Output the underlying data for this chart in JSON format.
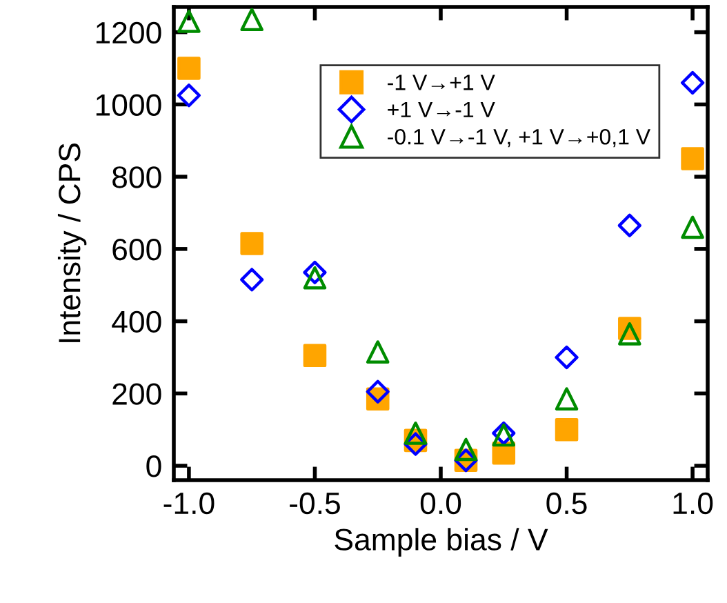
{
  "chart_data": {
    "type": "scatter",
    "xlabel": "Sample bias / V",
    "ylabel": "Intensity / CPS",
    "x": [
      -1.0,
      -0.75,
      -0.5,
      -0.25,
      -0.1,
      0.1,
      0.25,
      0.5,
      0.75,
      1.0
    ],
    "series": [
      {
        "name": "-1 V→+1 V",
        "color": "#ffa500",
        "marker": "square",
        "values": [
          1100,
          615,
          305,
          185,
          70,
          15,
          35,
          100,
          380,
          850
        ]
      },
      {
        "name": "+1 V→-1 V",
        "color": "#0000ff",
        "marker": "diamond",
        "values": [
          1025,
          515,
          535,
          205,
          60,
          15,
          90,
          300,
          665,
          1060
        ]
      },
      {
        "name": "-0.1 V→-1 V, +1 V→+0,1 V",
        "color": "#008c00",
        "marker": "triangle",
        "values": [
          1230,
          1235,
          520,
          315,
          90,
          45,
          85,
          185,
          365,
          660
        ]
      }
    ],
    "xlim": [
      -1.06,
      1.06
    ],
    "xticks": [
      {
        "value": -1.0,
        "label": "-1.0"
      },
      {
        "value": -0.5,
        "label": "-0.5"
      },
      {
        "value": 0.0,
        "label": "0.0"
      },
      {
        "value": 0.5,
        "label": "0.5"
      },
      {
        "value": 1.0,
        "label": "1.0"
      }
    ],
    "ylim": [
      -40,
      1270
    ],
    "yticks": [
      0,
      200,
      400,
      600,
      800,
      1000,
      1200
    ],
    "grid": false,
    "legend": "top right"
  }
}
